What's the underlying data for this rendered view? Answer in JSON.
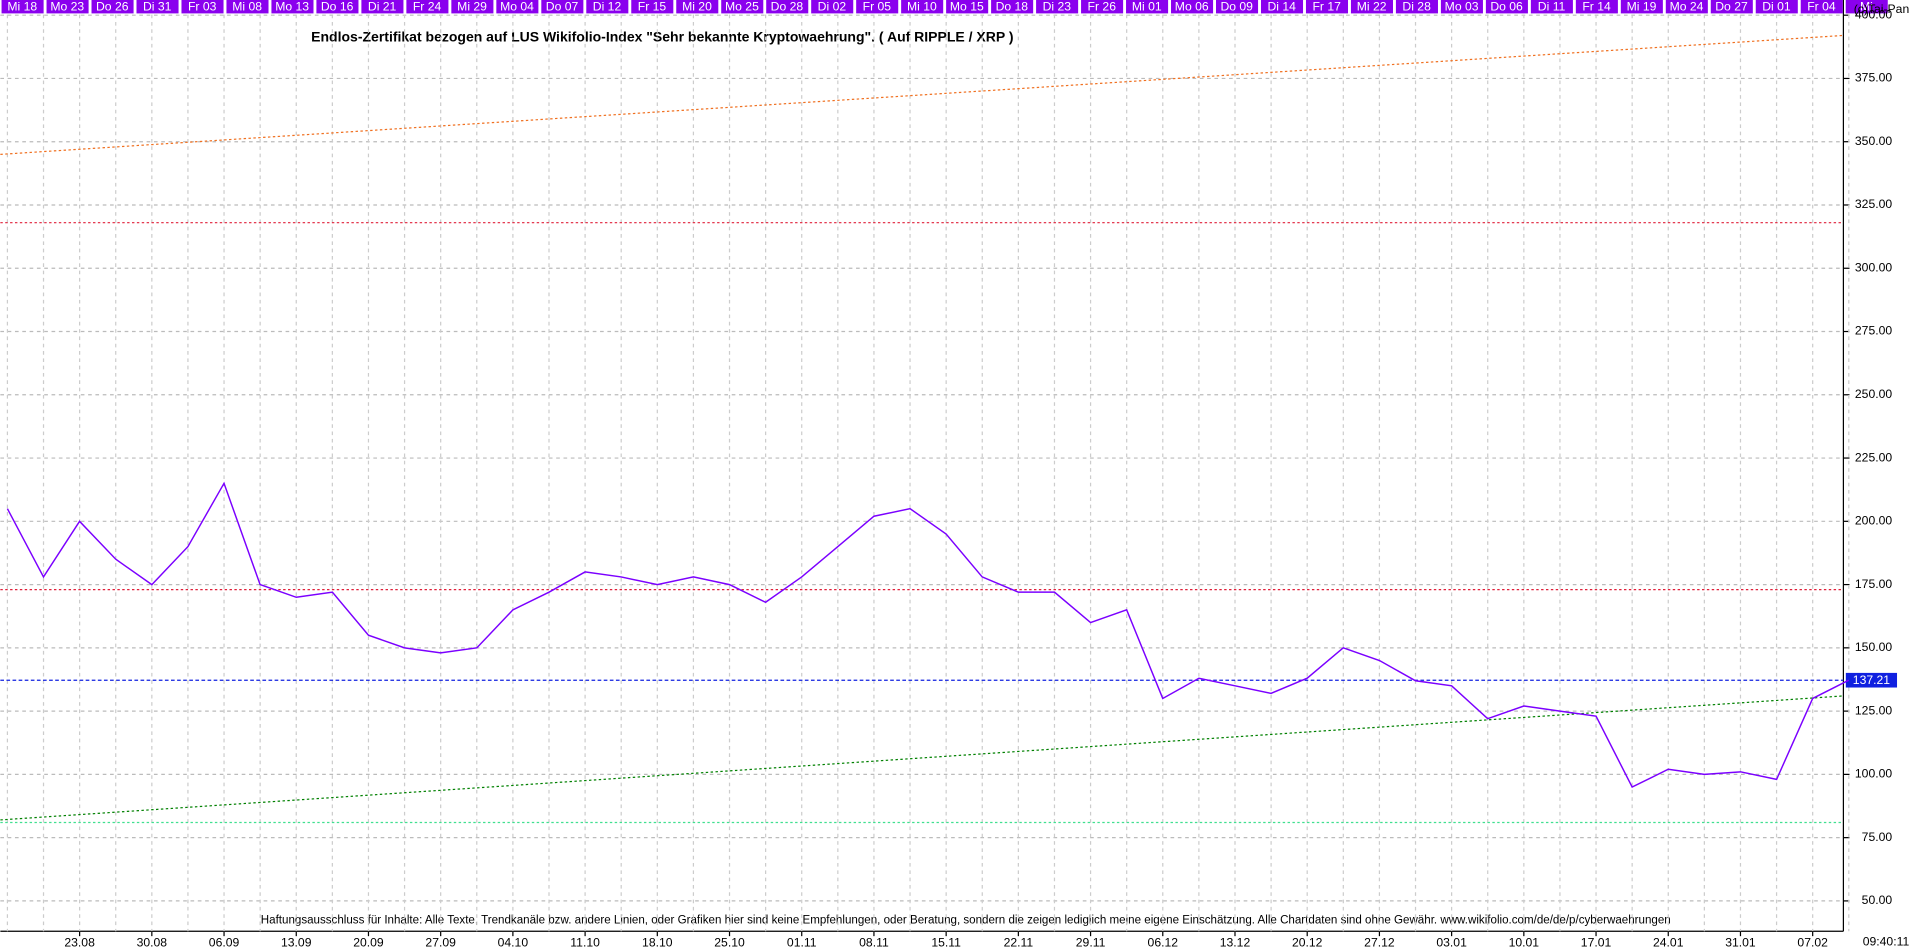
{
  "top_labels": [
    "Mi 18",
    "Mo 23",
    "Do 26",
    "Di 31",
    "Fr 03",
    "Mi 08",
    "Mo 13",
    "Do 16",
    "Di 21",
    "Fr 24",
    "Mi 29",
    "Mo 04",
    "Do 07",
    "Di 12",
    "Fr 15",
    "Mi 20",
    "Mo 25",
    "Do 28",
    "Di 02",
    "Fr 05",
    "Mi 10",
    "Mo 15",
    "Do 18",
    "Di 23",
    "Fr 26",
    "Mi 01",
    "Mo 06",
    "Do 09",
    "Di 14",
    "Fr 17",
    "Mi 22",
    "Di 28",
    "Mo 03",
    "Do 06",
    "Di 11",
    "Fr 14",
    "Mi 19",
    "Mo 24",
    "Do 27",
    "Di 01",
    "Fr 04",
    "Mi"
  ],
  "copyright": "(c)Tai-Pan",
  "time": "09:40:11",
  "chart_data": {
    "type": "line",
    "title": "Endlos-Zertifikat bezogen auf LUS Wikifolio-Index \"Sehr bekannte Kryptowaehrung\". ( Auf RIPPLE / XRP )",
    "footnote": "Haftungsausschluss für Inhalte: Alle Texte, Trendkanäle bzw. andere Linien, oder Grafiken hier sind keine Empfehlungen, oder Beratung, sondern die zeigen lediglich meine eigene Einschätzung. Alle Chartdaten sind ohne Gewähr.  www.wikifolio.com/de/de/p/cyberwaehrungen",
    "categories": [
      null,
      null,
      "23.08",
      null,
      "30.08",
      null,
      "06.09",
      null,
      "13.09",
      null,
      "20.09",
      null,
      "27.09",
      null,
      "04.10",
      null,
      "11.10",
      null,
      "18.10",
      null,
      "25.10",
      null,
      "01.11",
      null,
      "08.11",
      null,
      "15.11",
      null,
      "22.11",
      null,
      "29.11",
      null,
      "06.12",
      null,
      "13.12",
      null,
      "20.12",
      null,
      "27.12",
      null,
      "03.01",
      null,
      "10.01",
      null,
      "17.01",
      null,
      "24.01",
      null,
      "31.01",
      null,
      "07.02",
      null
    ],
    "series": [
      {
        "color": "#7b00ff",
        "values": [
          205,
          178,
          200,
          185,
          175,
          190,
          215,
          175,
          170,
          172,
          155,
          150,
          148,
          150,
          165,
          172,
          180,
          178,
          175,
          178,
          175,
          168,
          178,
          190,
          202,
          205,
          195,
          178,
          172,
          172,
          160,
          165,
          130,
          138,
          135,
          132,
          138,
          150,
          145,
          137,
          135,
          122,
          127,
          125,
          123,
          95,
          102,
          100,
          101,
          98,
          130,
          137.21
        ]
      }
    ],
    "ylim": [
      38,
      406
    ],
    "yticks": [
      {
        "value": 50,
        "label": "50.00"
      },
      {
        "value": 75,
        "label": "75.00"
      },
      {
        "value": 100,
        "label": "100.00"
      },
      {
        "value": 125,
        "label": "125.00"
      },
      {
        "value": 150,
        "label": "150.00"
      },
      {
        "value": 175,
        "label": "175.00"
      },
      {
        "value": 200,
        "label": "200.00"
      },
      {
        "value": 225,
        "label": "225.00"
      },
      {
        "value": 250,
        "label": "250.00"
      },
      {
        "value": 275,
        "label": "275.00"
      },
      {
        "value": 300,
        "label": "300.00"
      },
      {
        "value": 325,
        "label": "325.00"
      },
      {
        "value": 350,
        "label": "350.00"
      },
      {
        "value": 375,
        "label": "375.00"
      },
      {
        "value": 400,
        "label": "400.00"
      }
    ],
    "levels": [
      {
        "value": 318,
        "color": "#e0203a"
      },
      {
        "value": 173,
        "color": "#e0203a"
      },
      {
        "value": 81,
        "color": "#40e090"
      }
    ],
    "last_value": {
      "value": 137.21,
      "color": "#1020e0"
    },
    "trendlines": [
      {
        "start": 345,
        "end": 392,
        "color": "#f07020"
      },
      {
        "start": 82,
        "end": 131,
        "color": "#008000"
      }
    ],
    "grid": true
  }
}
